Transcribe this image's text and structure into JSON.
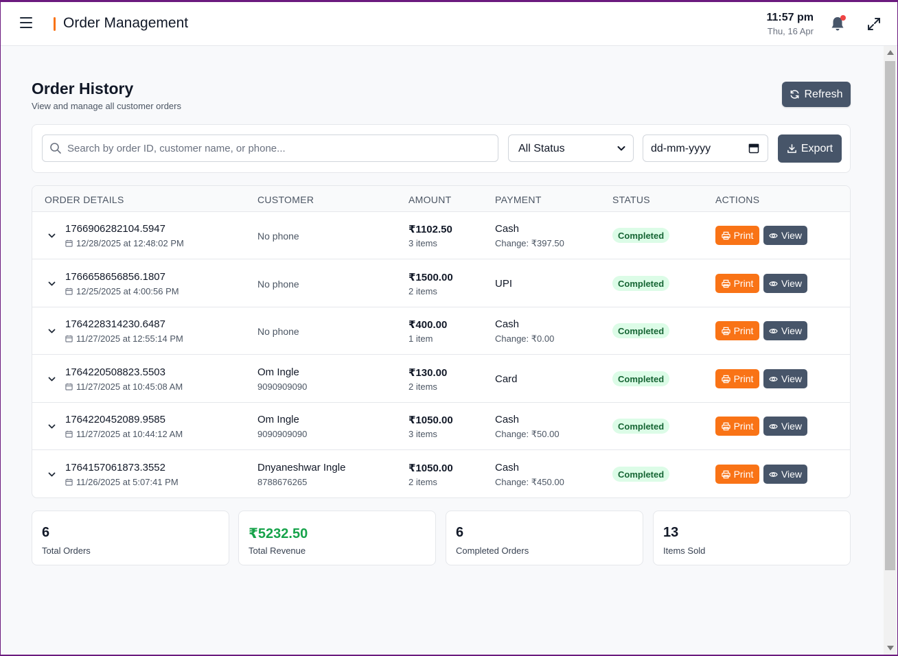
{
  "header": {
    "title": "Order Management",
    "time": "11:57 pm",
    "date": "Thu, 16 Apr"
  },
  "page": {
    "title": "Order History",
    "subtitle": "View and manage all customer orders",
    "refresh_label": "Refresh"
  },
  "filters": {
    "search_placeholder": "Search by order ID, customer name, or phone...",
    "status_value": "All Status",
    "date_placeholder": "dd-mm-yyyy",
    "export_label": "Export"
  },
  "table": {
    "columns": [
      "ORDER DETAILS",
      "CUSTOMER",
      "AMOUNT",
      "PAYMENT",
      "STATUS",
      "ACTIONS"
    ],
    "print_label": "Print",
    "view_label": "View",
    "rows": [
      {
        "id": "1766906282104.5947",
        "date": "12/28/2025 at 12:48:02 PM",
        "customer": "",
        "phone": "No phone",
        "amount": "₹1102.50",
        "items": "3 items",
        "payment": "Cash",
        "change": "Change: ₹397.50",
        "status": "Completed"
      },
      {
        "id": "1766658656856.1807",
        "date": "12/25/2025 at 4:00:56 PM",
        "customer": "",
        "phone": "No phone",
        "amount": "₹1500.00",
        "items": "2 items",
        "payment": "UPI",
        "change": "",
        "status": "Completed"
      },
      {
        "id": "1764228314230.6487",
        "date": "11/27/2025 at 12:55:14 PM",
        "customer": "",
        "phone": "No phone",
        "amount": "₹400.00",
        "items": "1 item",
        "payment": "Cash",
        "change": "Change: ₹0.00",
        "status": "Completed"
      },
      {
        "id": "1764220508823.5503",
        "date": "11/27/2025 at 10:45:08 AM",
        "customer": "Om Ingle",
        "phone": "9090909090",
        "amount": "₹130.00",
        "items": "2 items",
        "payment": "Card",
        "change": "",
        "status": "Completed"
      },
      {
        "id": "1764220452089.9585",
        "date": "11/27/2025 at 10:44:12 AM",
        "customer": "Om Ingle",
        "phone": "9090909090",
        "amount": "₹1050.00",
        "items": "3 items",
        "payment": "Cash",
        "change": "Change: ₹50.00",
        "status": "Completed"
      },
      {
        "id": "1764157061873.3552",
        "date": "11/26/2025 at 5:07:41 PM",
        "customer": "Dnyaneshwar Ingle",
        "phone": "8788676265",
        "amount": "₹1050.00",
        "items": "2 items",
        "payment": "Cash",
        "change": "Change: ₹450.00",
        "status": "Completed"
      }
    ]
  },
  "stats": [
    {
      "value": "6",
      "label": "Total Orders",
      "color": "#111827"
    },
    {
      "value": "₹5232.50",
      "label": "Total Revenue",
      "color": "#16a34a"
    },
    {
      "value": "6",
      "label": "Completed Orders",
      "color": "#111827"
    },
    {
      "value": "13",
      "label": "Items Sold",
      "color": "#111827"
    }
  ],
  "colors": {
    "accent": "#f97316",
    "slate_button": "#475569",
    "status_green_bg": "#dcfce7",
    "status_green_text": "#166534",
    "notification_dot": "#ef4444",
    "window_frame": "#6b1a7e"
  },
  "icons": {
    "menu": "hamburger-menu-icon",
    "bell": "bell-icon",
    "expand": "fullscreen-icon",
    "refresh": "refresh-icon",
    "search": "search-icon",
    "export": "download-icon",
    "calendar": "calendar-icon",
    "print": "printer-icon",
    "view": "eye-icon",
    "chevron": "chevron-down-icon"
  }
}
